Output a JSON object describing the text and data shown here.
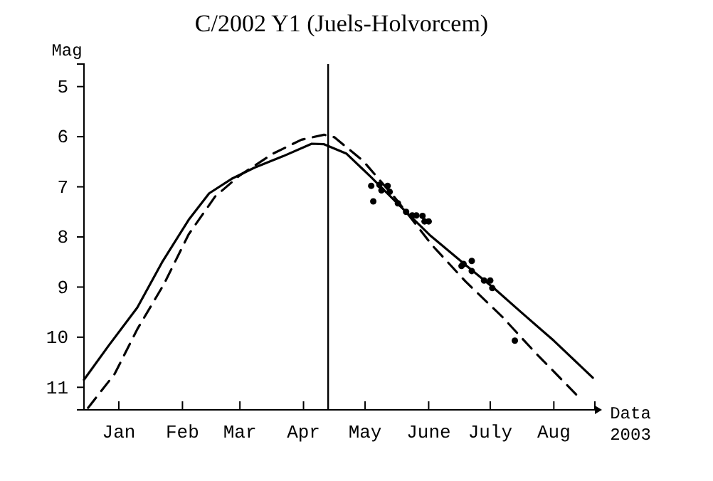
{
  "chart_data": {
    "type": "line",
    "title": "C/2002 Y1 (Juels-Holvorcem)",
    "xlabel": "Data",
    "ylabel": "Mag",
    "annotations": [
      "2003"
    ],
    "xlim": [
      "2002-12-15",
      "2003-08-21"
    ],
    "ylim": [
      11.45,
      4.55
    ],
    "xticks": [
      {
        "value": "2003-01-01",
        "label": "Jan"
      },
      {
        "value": "2003-02-01",
        "label": "Feb"
      },
      {
        "value": "2003-03-01",
        "label": "Mar"
      },
      {
        "value": "2003-04-01",
        "label": "Apr"
      },
      {
        "value": "2003-05-01",
        "label": "May"
      },
      {
        "value": "2003-06-01",
        "label": "June"
      },
      {
        "value": "2003-07-01",
        "label": "July"
      },
      {
        "value": "2003-08-01",
        "label": "Aug"
      }
    ],
    "yticks": [
      5,
      6,
      7,
      8,
      9,
      10,
      11
    ],
    "grid": false,
    "ref_lines": [
      {
        "axis": "x",
        "value": "2003-04-13",
        "color": "#000000"
      }
    ],
    "series": [
      {
        "color": "#000000",
        "line_style": "solid",
        "marker": "none",
        "x": [
          "2002-12-15",
          "2002-12-27",
          "2003-01-10",
          "2003-01-22",
          "2003-02-04",
          "2003-02-14",
          "2003-02-25",
          "2003-03-08",
          "2003-03-22",
          "2003-04-05",
          "2003-04-11",
          "2003-04-22",
          "2003-05-04",
          "2003-05-18",
          "2003-06-02",
          "2003-06-19",
          "2003-07-03",
          "2003-07-16",
          "2003-08-01",
          "2003-08-20"
        ],
        "values": [
          10.85,
          10.17,
          9.41,
          8.51,
          7.66,
          7.13,
          6.84,
          6.62,
          6.39,
          6.14,
          6.15,
          6.34,
          6.81,
          7.38,
          7.98,
          8.56,
          9.03,
          9.5,
          10.07,
          10.81
        ]
      },
      {
        "color": "#000000",
        "line_style": "dashed",
        "marker": "none",
        "x": [
          "2002-12-17",
          "2002-12-30",
          "2003-01-10",
          "2003-01-23",
          "2003-02-04",
          "2003-02-17",
          "2003-03-01",
          "2003-03-17",
          "2003-03-31",
          "2003-04-11",
          "2003-04-16",
          "2003-04-30",
          "2003-05-16",
          "2003-06-03",
          "2003-06-19",
          "2003-07-07",
          "2003-07-23",
          "2003-08-13"
        ],
        "values": [
          11.41,
          10.73,
          9.84,
          8.94,
          7.95,
          7.19,
          6.77,
          6.34,
          6.06,
          5.96,
          6.01,
          6.48,
          7.24,
          8.18,
          8.89,
          9.6,
          10.31,
          11.19
        ]
      },
      {
        "type": "scatter",
        "color": "#000000",
        "marker": "circle",
        "x": [
          "2003-05-04",
          "2003-05-05",
          "2003-05-08",
          "2003-05-09",
          "2003-05-12",
          "2003-05-13",
          "2003-05-17",
          "2003-05-21",
          "2003-05-24",
          "2003-05-26",
          "2003-05-29",
          "2003-05-30",
          "2003-06-01",
          "2003-06-17",
          "2003-06-18",
          "2003-06-22",
          "2003-06-22",
          "2003-06-28",
          "2003-07-01",
          "2003-07-02",
          "2003-07-13"
        ],
        "values": [
          6.98,
          7.29,
          6.96,
          7.07,
          6.98,
          7.1,
          7.33,
          7.5,
          7.57,
          7.57,
          7.58,
          7.69,
          7.69,
          8.58,
          8.54,
          8.48,
          8.68,
          8.87,
          8.87,
          9.02,
          10.07
        ]
      }
    ]
  }
}
